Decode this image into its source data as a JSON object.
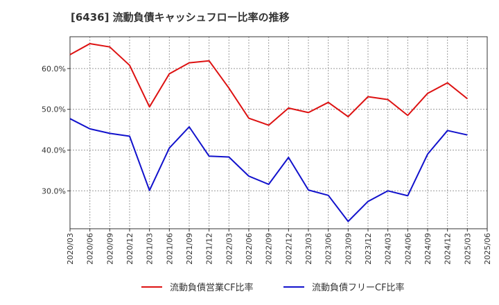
{
  "chart_data": {
    "type": "line",
    "title": "[6436]  流動負債キャッシュフロー比率の推移",
    "xlabel": "",
    "ylabel": "",
    "ylim": [
      20.7,
      67.8
    ],
    "yticks": [
      30,
      40,
      50,
      60
    ],
    "ytick_labels": [
      "30.0%",
      "40.0%",
      "50.0%",
      "60.0%"
    ],
    "categories": [
      "2020/03",
      "2020/06",
      "2020/09",
      "2020/12",
      "2021/03",
      "2021/06",
      "2021/09",
      "2021/12",
      "2022/03",
      "2022/06",
      "2022/09",
      "2022/12",
      "2023/03",
      "2023/06",
      "2023/09",
      "2023/12",
      "2024/03",
      "2024/06",
      "2024/09",
      "2024/12",
      "2025/03",
      "2025/06"
    ],
    "grid": true,
    "legend_position": "bottom",
    "series": [
      {
        "name": "流動負債営業CF比率",
        "color": "#dd1111",
        "values": [
          63.4,
          66.1,
          65.3,
          60.8,
          50.6,
          58.7,
          61.4,
          61.9,
          55.2,
          47.8,
          46.1,
          50.3,
          49.2,
          51.7,
          48.2,
          53.1,
          52.4,
          48.5,
          53.9,
          56.5,
          52.6,
          null
        ]
      },
      {
        "name": "流動負債フリーCF比率",
        "color": "#1111cc",
        "values": [
          47.7,
          45.2,
          44.1,
          43.4,
          30.1,
          40.5,
          45.7,
          38.5,
          38.3,
          33.6,
          31.6,
          38.2,
          30.2,
          28.9,
          22.5,
          27.4,
          30.0,
          28.8,
          39.0,
          44.8,
          43.7,
          null
        ]
      }
    ]
  }
}
